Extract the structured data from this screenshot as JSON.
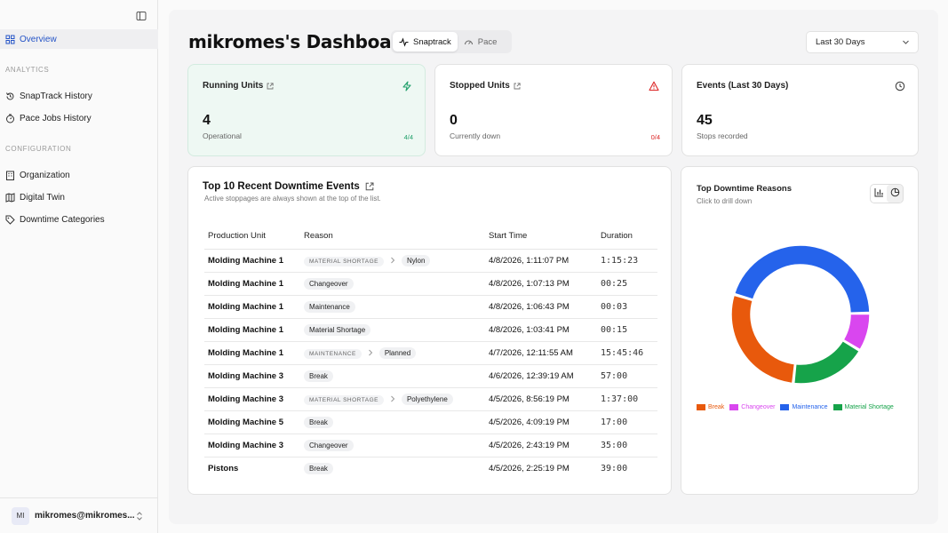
{
  "sidebar": {
    "overview_label": "Overview",
    "analytics_label": "ANALYTICS",
    "snaptrack_label": "SnapTrack History",
    "pace_label": "Pace Jobs History",
    "configuration_label": "CONFIGURATION",
    "organization_label": "Organization",
    "digital_twin_label": "Digital Twin",
    "downtime_label": "Downtime Categories",
    "user_initials": "MI",
    "user_name": "mikromes@mikromes..."
  },
  "header": {
    "title": "mikromes's Dashboard",
    "tab_snaptrack": "Snaptrack",
    "tab_pace": "Pace",
    "date_range": "Last 30 Days"
  },
  "stats": {
    "running": {
      "title": "Running Units",
      "value": "4",
      "sub": "Operational",
      "ratio": "4/4"
    },
    "stopped": {
      "title": "Stopped Units",
      "value": "0",
      "sub": "Currently down",
      "ratio": "0/4"
    },
    "events": {
      "title": "Events (Last 30 Days)",
      "value": "45",
      "sub": "Stops recorded"
    }
  },
  "downtime": {
    "title": "Top 10 Recent Downtime Events",
    "subtitle": "Active stoppages are always shown at the top of the list.",
    "columns": [
      "Production Unit",
      "Reason",
      "Start Time",
      "Duration"
    ],
    "rows": [
      {
        "unit": "Molding Machine 1",
        "category": "MATERIAL SHORTAGE",
        "reason": "Nylon",
        "start": "4/8/2026, 1:11:07 PM",
        "duration": "1:15:23"
      },
      {
        "unit": "Molding Machine 1",
        "category": "",
        "reason": "Changeover",
        "start": "4/8/2026, 1:07:13 PM",
        "duration": "00:25"
      },
      {
        "unit": "Molding Machine 1",
        "category": "",
        "reason": "Maintenance",
        "start": "4/8/2026, 1:06:43 PM",
        "duration": "00:03"
      },
      {
        "unit": "Molding Machine 1",
        "category": "",
        "reason": "Material Shortage",
        "start": "4/8/2026, 1:03:41 PM",
        "duration": "00:15"
      },
      {
        "unit": "Molding Machine 1",
        "category": "MAINTENANCE",
        "reason": "Planned",
        "start": "4/7/2026, 12:11:55 AM",
        "duration": "15:45:46"
      },
      {
        "unit": "Molding Machine 3",
        "category": "",
        "reason": "Break",
        "start": "4/6/2026, 12:39:19 AM",
        "duration": "57:00"
      },
      {
        "unit": "Molding Machine 3",
        "category": "MATERIAL SHORTAGE",
        "reason": "Polyethylene",
        "start": "4/5/2026, 8:56:19 PM",
        "duration": "1:37:00"
      },
      {
        "unit": "Molding Machine 5",
        "category": "",
        "reason": "Break",
        "start": "4/5/2026, 4:09:19 PM",
        "duration": "17:00"
      },
      {
        "unit": "Molding Machine 3",
        "category": "",
        "reason": "Changeover",
        "start": "4/5/2026, 2:43:19 PM",
        "duration": "35:00"
      },
      {
        "unit": "Pistons",
        "category": "",
        "reason": "Break",
        "start": "4/5/2026, 2:25:19 PM",
        "duration": "39:00"
      }
    ]
  },
  "reasons_chart": {
    "title": "Top Downtime Reasons",
    "subtitle": "Click to drill down"
  },
  "chart_data": {
    "type": "pie",
    "categories": [
      "Break",
      "Changeover",
      "Maintenance",
      "Material Shortage"
    ],
    "values": [
      28,
      9,
      45,
      18
    ],
    "colors": [
      "#e8590c",
      "#d946ef",
      "#2563eb",
      "#16a34a"
    ],
    "title": "Top Downtime Reasons",
    "legend": "bottom"
  }
}
